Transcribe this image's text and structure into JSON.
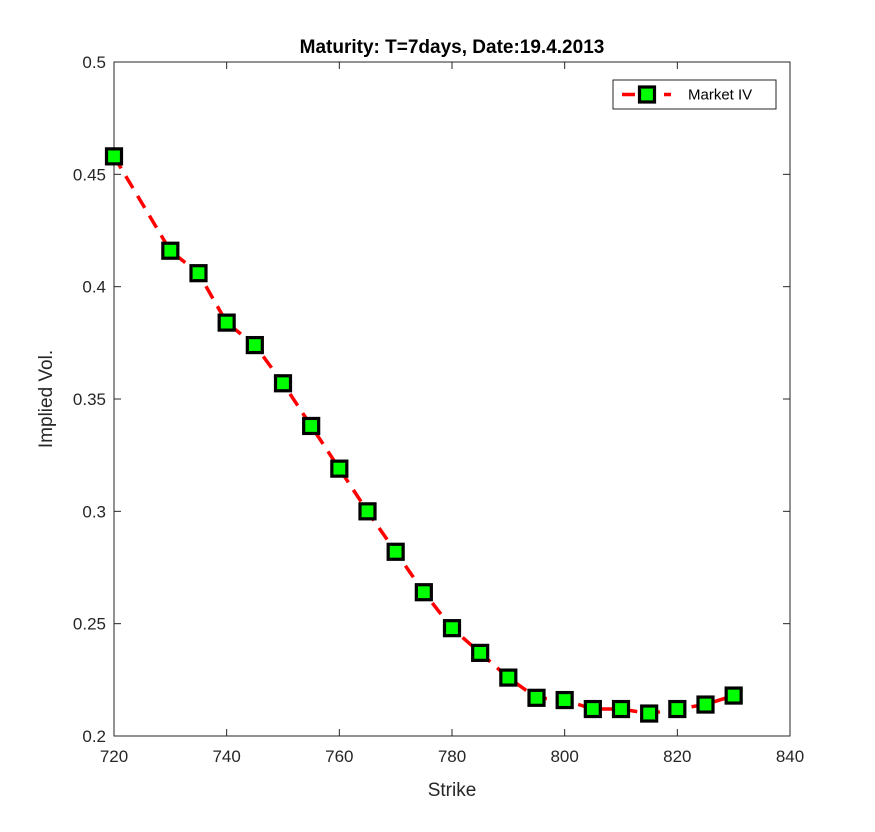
{
  "chart_data": {
    "type": "line",
    "title": "Maturity: T=7days, Date:19.4.2013",
    "xlabel": "Strike",
    "ylabel": "Implied Vol.",
    "xlim": [
      720,
      840
    ],
    "ylim": [
      0.2,
      0.5
    ],
    "xticks": [
      720,
      740,
      760,
      780,
      800,
      820,
      840
    ],
    "yticks": [
      0.2,
      0.25,
      0.3,
      0.35,
      0.4,
      0.45,
      0.5
    ],
    "xtick_labels": [
      "720",
      "740",
      "760",
      "780",
      "800",
      "820",
      "840"
    ],
    "ytick_labels": [
      "0.2",
      "0.25",
      "0.3",
      "0.35",
      "0.4",
      "0.45",
      "0.5"
    ],
    "grid": false,
    "legend_position": "top-right",
    "series": [
      {
        "name": "Market IV",
        "line_style": "dashed",
        "line_color": "#ff0000",
        "marker": "square",
        "marker_face": "#00ff00",
        "marker_edge": "#000000",
        "x": [
          720,
          730,
          735,
          740,
          745,
          750,
          755,
          760,
          765,
          770,
          775,
          780,
          785,
          790,
          795,
          800,
          805,
          810,
          815,
          820,
          825,
          830
        ],
        "y": [
          0.458,
          0.416,
          0.406,
          0.384,
          0.374,
          0.357,
          0.338,
          0.319,
          0.3,
          0.282,
          0.264,
          0.248,
          0.237,
          0.226,
          0.217,
          0.216,
          0.212,
          0.212,
          0.21,
          0.212,
          0.214,
          0.218
        ]
      }
    ]
  }
}
